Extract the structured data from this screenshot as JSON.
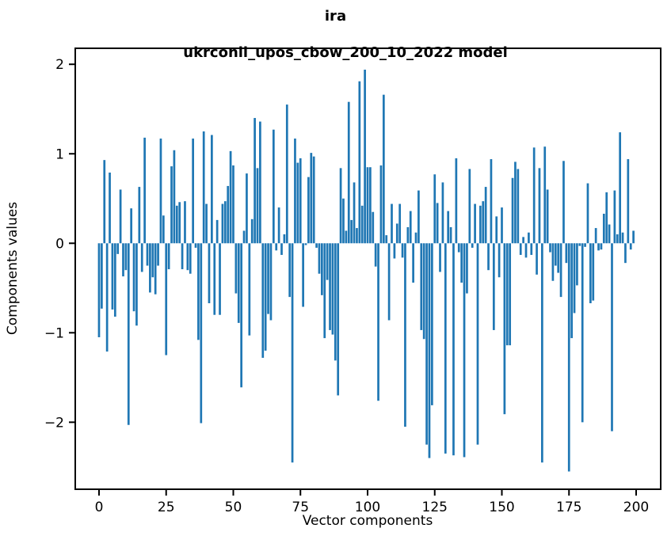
{
  "figure": {
    "title_line1": "ira",
    "title_line2": "ukrconll_upos_cbow_200_10_2022 model"
  },
  "chart_data": {
    "type": "bar",
    "title": "ira\nukrconll_upos_cbow_200_10_2022 model",
    "xlabel": "Vector components",
    "ylabel": "Components values",
    "bar_color": "#1f77b4",
    "axis_color": "#000000",
    "grid": false,
    "legend": "none",
    "x_ticks": [
      0,
      25,
      50,
      75,
      100,
      125,
      150,
      175,
      200
    ],
    "y_ticks": [
      -2,
      -1,
      0,
      1,
      2
    ],
    "xlim": [
      -8.55,
      208.85
    ],
    "ylim": [
      -2.74,
      2.17
    ],
    "x_start": 0,
    "n_bars": 200,
    "bar_width_units": 0.8,
    "values": [
      -1.05,
      -0.73,
      0.93,
      -1.21,
      0.79,
      -0.74,
      -0.82,
      -0.12,
      0.6,
      -0.37,
      -0.3,
      -2.03,
      0.39,
      -0.76,
      -0.92,
      0.63,
      -0.32,
      1.18,
      -0.25,
      -0.55,
      -0.38,
      -0.57,
      -0.25,
      1.17,
      0.31,
      -1.25,
      -0.29,
      0.86,
      1.04,
      0.42,
      0.46,
      -0.29,
      0.47,
      -0.3,
      -0.34,
      1.17,
      -0.05,
      -1.08,
      -2.01,
      1.25,
      0.44,
      -0.67,
      1.21,
      -0.8,
      0.26,
      -0.8,
      0.44,
      0.47,
      0.64,
      1.03,
      0.87,
      -0.56,
      -0.89,
      -1.61,
      0.14,
      0.78,
      -1.03,
      0.27,
      1.4,
      0.84,
      1.36,
      -1.28,
      -1.2,
      -0.79,
      -0.86,
      1.27,
      -0.08,
      0.4,
      -0.13,
      0.1,
      1.55,
      -0.6,
      -2.45,
      1.17,
      0.9,
      0.95,
      -0.71,
      -0.02,
      0.74,
      1.01,
      0.97,
      -0.05,
      -0.34,
      -0.58,
      -1.06,
      -0.41,
      -0.97,
      -1.02,
      -1.31,
      -1.7,
      0.84,
      0.5,
      0.14,
      1.58,
      0.26,
      0.68,
      0.17,
      1.81,
      0.42,
      1.94,
      0.85,
      0.85,
      0.35,
      -0.26,
      -1.76,
      0.87,
      1.66,
      0.09,
      -0.86,
      0.44,
      -0.17,
      0.22,
      0.44,
      -0.16,
      -2.05,
      0.18,
      0.36,
      -0.44,
      0.12,
      0.59,
      -0.97,
      -1.07,
      -2.25,
      -2.4,
      -1.81,
      0.77,
      0.45,
      -0.32,
      0.68,
      -2.35,
      0.36,
      0.18,
      -2.37,
      0.95,
      -0.1,
      -0.44,
      -2.39,
      -0.56,
      0.83,
      -0.05,
      0.44,
      -2.25,
      0.42,
      0.47,
      0.63,
      -0.3,
      0.94,
      -0.97,
      0.3,
      -0.38,
      0.4,
      -1.91,
      -1.14,
      -1.14,
      0.73,
      0.91,
      0.83,
      -0.13,
      0.07,
      -0.16,
      0.12,
      -0.13,
      1.07,
      -0.35,
      0.84,
      -2.45,
      1.08,
      0.6,
      -0.1,
      -0.42,
      -0.25,
      -0.33,
      -0.6,
      0.92,
      -0.22,
      -2.55,
      -1.06,
      -0.78,
      -0.47,
      -0.03,
      -2.0,
      -0.04,
      0.67,
      -0.67,
      -0.64,
      0.17,
      -0.08,
      -0.07,
      0.33,
      0.57,
      0.21,
      -2.1,
      0.59,
      0.1,
      1.24,
      0.12,
      -0.22,
      0.94,
      -0.07,
      0.14
    ]
  }
}
